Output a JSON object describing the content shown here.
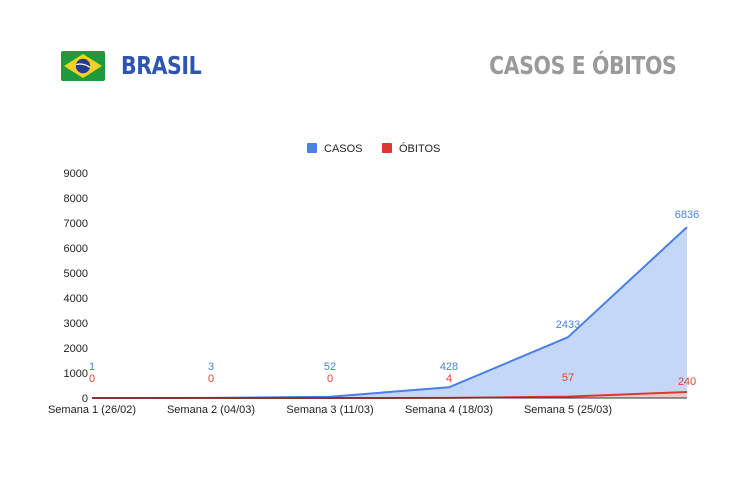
{
  "header": {
    "country": "BRASIL",
    "title": "CASOS E ÓBITOS",
    "flag_icon": "brazil-flag-icon"
  },
  "colors": {
    "casos_line": "#4a7fe5",
    "casos_fill": "#c5d7f6",
    "casos_label": "#4a7fe5",
    "obitos_line": "#d93a30",
    "obitos_fill": "#f0c8c4",
    "obitos_label": "#e04236",
    "header_country": "#2f55b3",
    "header_title": "#9a9a9a",
    "flag_green": "#1e9a3c",
    "flag_yellow": "#f6d21c",
    "flag_blue": "#233c8f"
  },
  "chart_data": {
    "type": "area",
    "categories": [
      "Semana 1 (26/02)",
      "Semana 2 (04/03)",
      "Semana 3 (11/03)",
      "Semana 4 (18/03)",
      "Semana 5 (25/03)",
      ""
    ],
    "series": [
      {
        "name": "CASOS",
        "values": [
          1,
          3,
          52,
          428,
          2433,
          6836
        ]
      },
      {
        "name": "ÓBITOS",
        "values": [
          0,
          0,
          0,
          4,
          57,
          240
        ]
      }
    ],
    "ylim": [
      0,
      9000
    ],
    "yticks": [
      0,
      1000,
      2000,
      3000,
      4000,
      5000,
      6000,
      7000,
      8000,
      9000
    ],
    "xlabel": "",
    "ylabel": "",
    "grid": false,
    "legend_position": "top-center"
  }
}
